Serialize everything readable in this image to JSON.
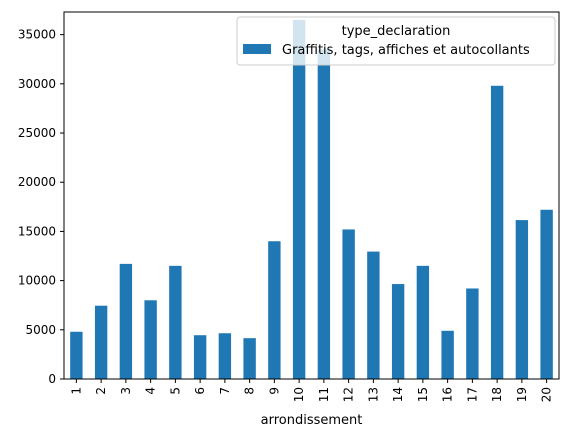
{
  "chart_data": {
    "type": "bar",
    "xlabel": "arrondissement",
    "ylabel": "",
    "categories": [
      "1",
      "2",
      "3",
      "4",
      "5",
      "6",
      "7",
      "8",
      "9",
      "10",
      "11",
      "12",
      "13",
      "14",
      "15",
      "16",
      "17",
      "18",
      "19",
      "20"
    ],
    "series": [
      {
        "name": "Graffitis, tags, affiches et autocollants",
        "color": "#1f77b4",
        "values": [
          4800,
          7450,
          11700,
          8000,
          11500,
          4450,
          4650,
          4150,
          14000,
          36500,
          33500,
          15200,
          12950,
          9650,
          11500,
          4900,
          9200,
          29800,
          16150,
          17200
        ]
      }
    ],
    "ylim": [
      0,
      37300
    ],
    "yticks": [
      0,
      5000,
      10000,
      15000,
      20000,
      25000,
      30000,
      35000
    ],
    "grid": false,
    "legend": {
      "title": "type_declaration",
      "placement": "top-right"
    }
  }
}
